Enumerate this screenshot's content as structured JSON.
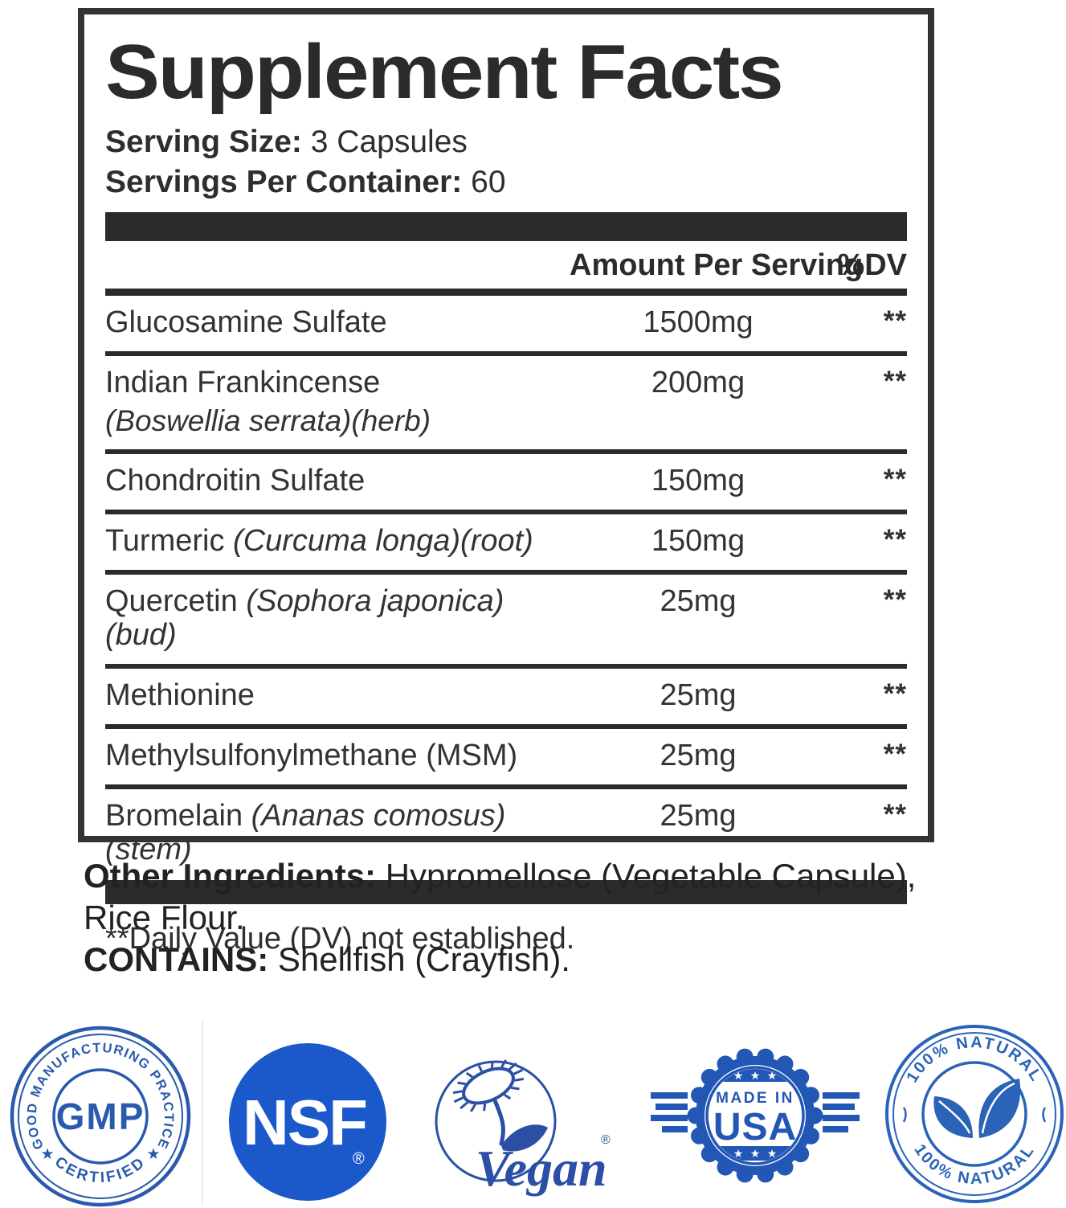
{
  "facts": {
    "title": "Supplement Facts",
    "serving_size_label": "Serving Size:",
    "serving_size_value": " 3 Capsules",
    "servings_label": "Servings Per Container:",
    "servings_value": " 60",
    "amount_header": "Amount Per Serving",
    "dv_header": "%DV",
    "rows": [
      {
        "name": "Glucosamine Sulfate",
        "latin": "",
        "amount": "1500mg",
        "dv": "**"
      },
      {
        "name": "Indian Frankincense",
        "latin": "(Boswellia serrata)(herb)",
        "amount": "200mg",
        "dv": "**"
      },
      {
        "name": "Chondroitin Sulfate",
        "latin": "",
        "amount": "150mg",
        "dv": "**"
      },
      {
        "name": "Turmeric",
        "latin": "(Curcuma longa)(root)",
        "amount": "150mg",
        "dv": "**"
      },
      {
        "name": "Quercetin",
        "latin": "(Sophora japonica)(bud)",
        "amount": "25mg",
        "dv": "**"
      },
      {
        "name": "Methionine",
        "latin": "",
        "amount": "25mg",
        "dv": "**"
      },
      {
        "name": "Methylsulfonylmethane (MSM)",
        "latin": "",
        "amount": "25mg",
        "dv": "**"
      },
      {
        "name": "Bromelain",
        "latin": "(Ananas comosus)(stem)",
        "amount": "25mg",
        "dv": "**"
      }
    ],
    "footnote": "**Daily Value (DV) not established."
  },
  "other_ingredients": {
    "label": "Other Ingredients:",
    "line1_rest": " Hypromellose (Vegetable Capsule),",
    "line2": "Rice Flour.",
    "contains_label": "CONTAINS:",
    "contains_rest": " Shellfish (Crayfish)."
  },
  "badges": {
    "gmp": {
      "arc_top": "GOOD MANUFACTURING PRACTICE",
      "arc_bottom": "CERTIFIED",
      "center": "GMP",
      "star": "★",
      "color": "#2a5aad"
    },
    "nsf": {
      "text": "NSF",
      "registered": "®",
      "color": "#1b59cb"
    },
    "vegan": {
      "text": "Vegan",
      "registered": "®",
      "color": "#2b4fa5"
    },
    "usa": {
      "line1": "MADE IN",
      "line2": "USA",
      "star": "★",
      "color": "#2257b5"
    },
    "natural": {
      "arc_top": "100% NATURAL",
      "arc_bottom": "100% NATURAL",
      "color": "#2a63b8"
    }
  }
}
